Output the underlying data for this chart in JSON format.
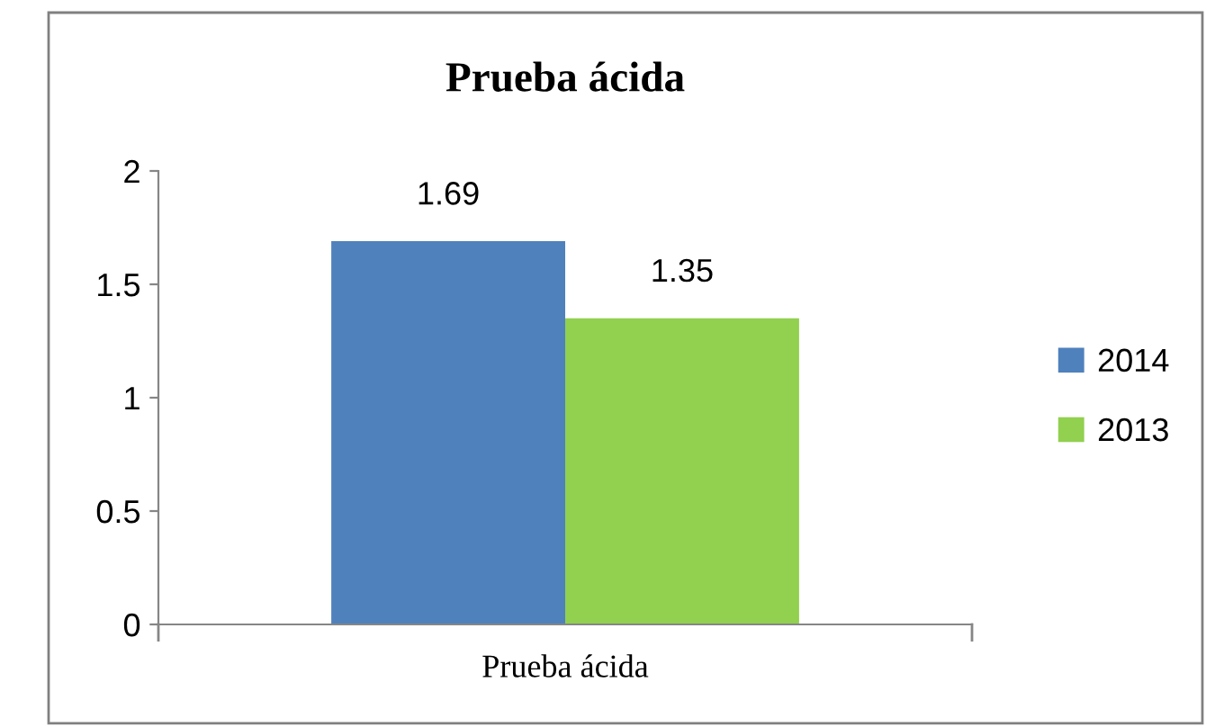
{
  "chart_data": {
    "type": "bar",
    "title": "Prueba ácida",
    "categories": [
      "Prueba ácida"
    ],
    "series": [
      {
        "name": "2014",
        "color": "#4f81bd",
        "values": [
          1.69
        ]
      },
      {
        "name": "2013",
        "color": "#92d050",
        "values": [
          1.35
        ]
      }
    ],
    "ylim": [
      0,
      2
    ],
    "yticks": [
      0,
      0.5,
      1,
      1.5,
      2
    ],
    "grid": false,
    "legend": "right",
    "data_labels": true
  }
}
